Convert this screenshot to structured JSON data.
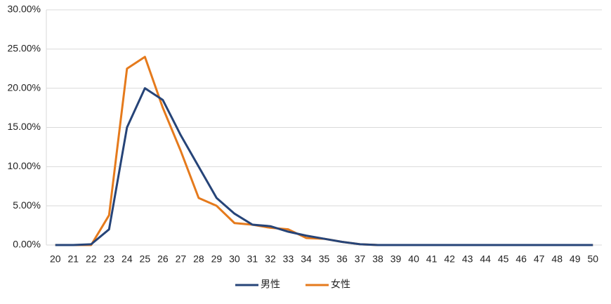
{
  "chart_data": {
    "type": "line",
    "categories": [
      "20",
      "21",
      "22",
      "23",
      "24",
      "25",
      "26",
      "27",
      "28",
      "29",
      "30",
      "31",
      "32",
      "33",
      "34",
      "35",
      "36",
      "37",
      "38",
      "39",
      "40",
      "41",
      "42",
      "43",
      "44",
      "45",
      "46",
      "47",
      "48",
      "49",
      "50"
    ],
    "series": [
      {
        "name": "男性",
        "color": "#264478",
        "values": [
          0,
          0,
          0.1,
          2,
          15,
          20,
          18.5,
          14,
          10,
          6,
          4,
          2.6,
          2.4,
          1.7,
          1.2,
          0.8,
          0.4,
          0.1,
          0,
          0,
          0,
          0,
          0,
          0,
          0,
          0,
          0,
          0,
          0,
          0,
          0
        ]
      },
      {
        "name": "女性",
        "color": "#e57a1c",
        "values": [
          0,
          0,
          0,
          3.8,
          22.5,
          24,
          17.5,
          12,
          6,
          5,
          2.8,
          2.6,
          2.2,
          2,
          0.9,
          0.8,
          0.4,
          0.1,
          0,
          0,
          0,
          0,
          0,
          0,
          0,
          0,
          0,
          0,
          0,
          0,
          0
        ]
      }
    ],
    "ylim": [
      0,
      30
    ],
    "yticks": [
      {
        "value": 0,
        "label": "0.00%"
      },
      {
        "value": 5,
        "label": "5.00%"
      },
      {
        "value": 10,
        "label": "10.00%"
      },
      {
        "value": 15,
        "label": "15.00%"
      },
      {
        "value": 20,
        "label": "20.00%"
      },
      {
        "value": 25,
        "label": "25.00%"
      },
      {
        "value": 30,
        "label": "30.00%"
      }
    ],
    "grid": true,
    "legend": "bottom"
  }
}
